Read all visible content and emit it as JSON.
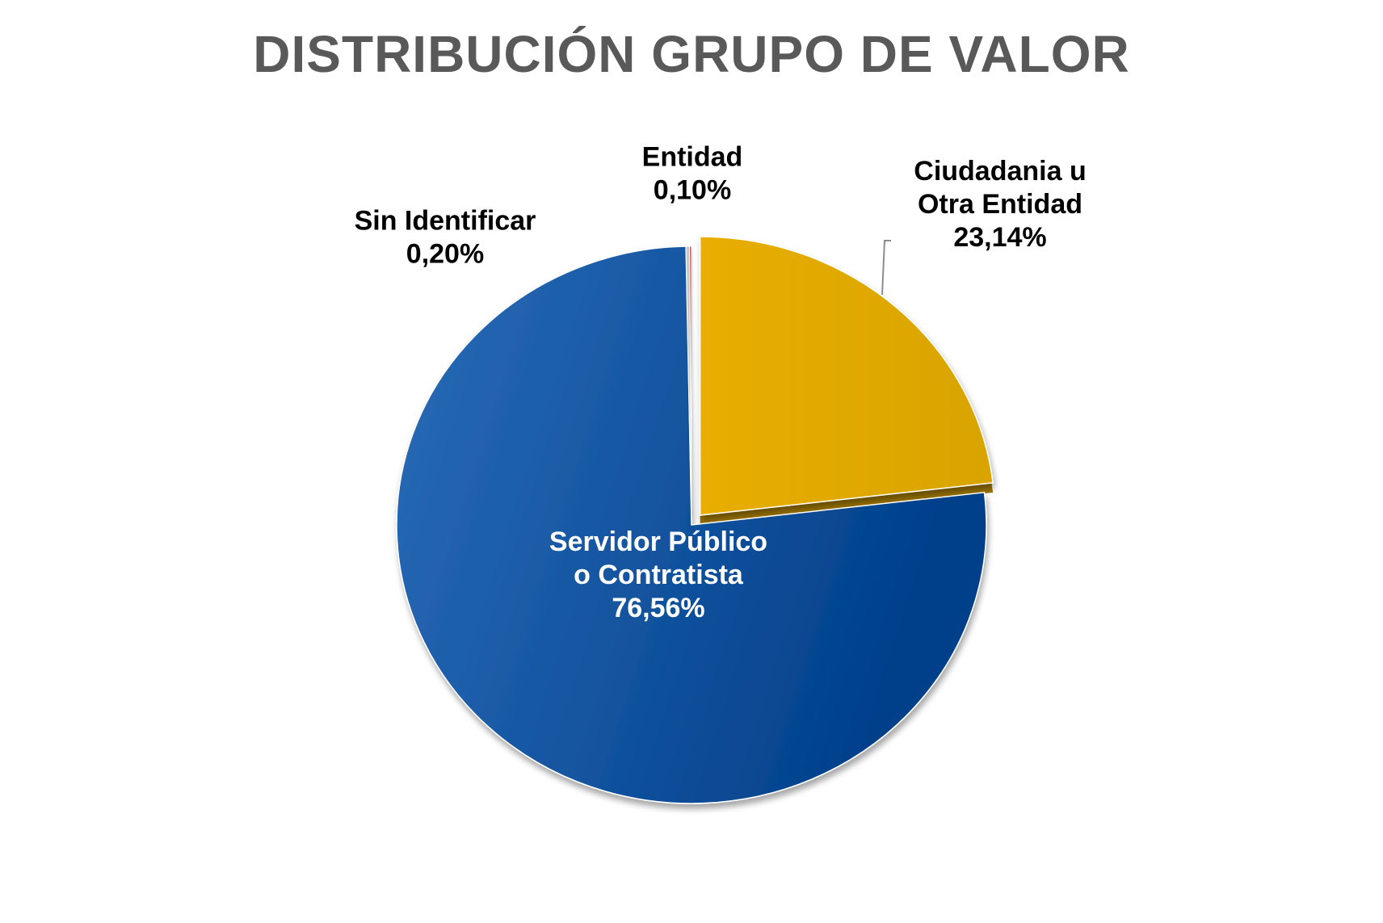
{
  "chart_data": {
    "type": "pie",
    "title": "DISTRIBUCIÓN GRUPO DE VALOR",
    "slices": [
      {
        "label_lines": [
          "Ciudadania u",
          "Otra Entidad"
        ],
        "percent_label": "23,14%",
        "value": 23.14,
        "color": "#E0A800",
        "label_color": "#000000",
        "exploded": true
      },
      {
        "label_lines": [
          "Servidor Público",
          "o Contratista"
        ],
        "percent_label": "76,56%",
        "value": 76.56,
        "color": "#1A4F9C",
        "label_color": "#FFFFFF",
        "exploded": false
      },
      {
        "label_lines": [
          "Sin Identificar"
        ],
        "percent_label": "0,20%",
        "value": 0.2,
        "color": "#C8C8C8",
        "label_color": "#000000",
        "exploded": false
      },
      {
        "label_lines": [
          "Entidad"
        ],
        "percent_label": "0,10%",
        "value": 0.1,
        "color": "#C0392B",
        "label_color": "#000000",
        "exploded": false
      }
    ],
    "legend": "none"
  }
}
